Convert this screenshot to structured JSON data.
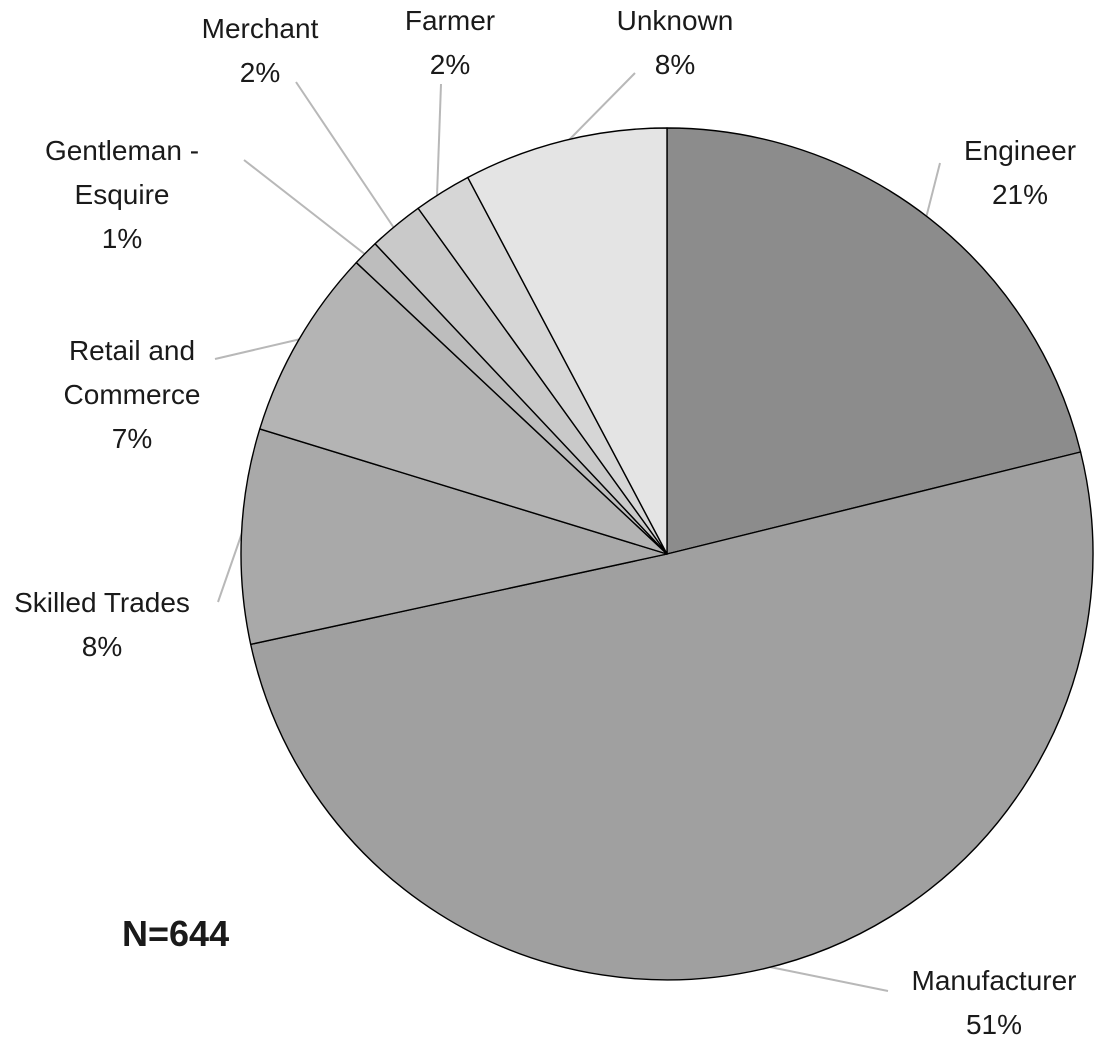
{
  "chart_data": {
    "type": "pie",
    "title": "",
    "start_angle_deg": 0,
    "direction": "clockwise",
    "slices": [
      {
        "category": "Engineer",
        "label_lines": [
          "Engineer"
        ],
        "pct_text": "21%",
        "value": 21.3,
        "color": "#8c8c8c"
      },
      {
        "category": "Manufacturer",
        "label_lines": [
          "Manufacturer"
        ],
        "pct_text": "51%",
        "value": 50.8,
        "color": "#a0a0a0"
      },
      {
        "category": "Skilled Trades",
        "label_lines": [
          "Skilled Trades"
        ],
        "pct_text": "8%",
        "value": 8.2,
        "color": "#a9a9a9"
      },
      {
        "category": "Retail and Commerce",
        "label_lines": [
          "Retail and",
          "Commerce"
        ],
        "pct_text": "7%",
        "value": 7.3,
        "color": "#b4b4b4"
      },
      {
        "category": "Gentleman - Esquire",
        "label_lines": [
          "Gentleman -",
          "Esquire"
        ],
        "pct_text": "1%",
        "value": 1.0,
        "color": "#bdbdbd"
      },
      {
        "category": "Merchant",
        "label_lines": [
          "Merchant"
        ],
        "pct_text": "2%",
        "value": 2.1,
        "color": "#c9c9c9"
      },
      {
        "category": "Farmer",
        "label_lines": [
          "Farmer"
        ],
        "pct_text": "2%",
        "value": 2.2,
        "color": "#d6d6d6"
      },
      {
        "category": "Unknown",
        "label_lines": [
          "Unknown"
        ],
        "pct_text": "8%",
        "value": 7.8,
        "color": "#e4e4e4"
      }
    ]
  },
  "annotation": {
    "n_label": "N=644"
  }
}
